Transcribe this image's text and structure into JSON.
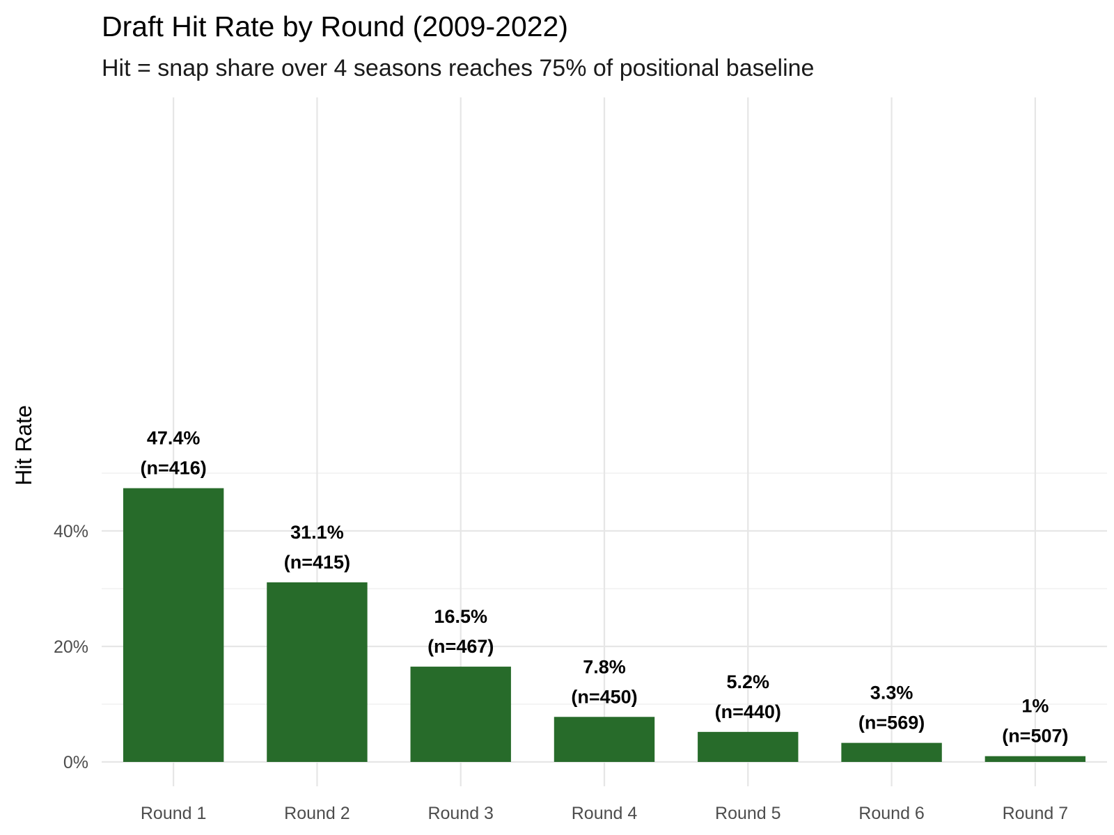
{
  "chart_data": {
    "type": "bar",
    "title": "Draft Hit Rate by Round (2009-2022)",
    "subtitle": "Hit = snap share over 4 seasons reaches 75% of positional baseline",
    "xlabel": "",
    "ylabel": "Hit Rate",
    "categories": [
      "Round 1",
      "Round 2",
      "Round 3",
      "Round 4",
      "Round 5",
      "Round 6",
      "Round 7"
    ],
    "values": [
      47.4,
      31.1,
      16.5,
      7.8,
      5.2,
      3.3,
      1.0
    ],
    "value_labels": [
      "47.4%",
      "31.1%",
      "16.5%",
      "7.8%",
      "5.2%",
      "3.3%",
      "1%"
    ],
    "n_labels": [
      "(n=416)",
      "(n=415)",
      "(n=467)",
      "(n=450)",
      "(n=440)",
      "(n=569)",
      "(n=507)"
    ],
    "ylim": [
      0,
      50
    ],
    "yticks": [
      0,
      20,
      40
    ],
    "ytick_labels": [
      "0%",
      "20%",
      "40%"
    ],
    "grid": true,
    "legend": "none",
    "bar_color": "#276b2a"
  }
}
